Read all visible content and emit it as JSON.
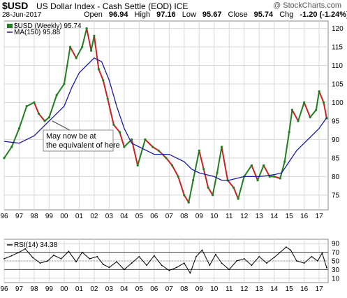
{
  "header": {
    "symbol": "$USD",
    "name": "US Dollar Index - Cash Settle (EOD) ICE",
    "site": "@ StockCharts.com",
    "date": "28-Jun-2017",
    "open_label": "Open",
    "open": "96.94",
    "high_label": "High",
    "high": "97.16",
    "low_label": "Low",
    "low": "95.67",
    "close_label": "Close",
    "close": "95.74",
    "chg_label": "Chg",
    "chg": "-1.20 (-1.24%)"
  },
  "colors": {
    "price": "#208020",
    "price_down": "#cc2020",
    "ma": "#1a1aa0",
    "rsi": "#000000",
    "grid": "#d8d8d8"
  },
  "chart_data": [
    {
      "type": "line",
      "legend": [
        {
          "label": "$USD (Weekly) 95.74",
          "icon": "price-swatch"
        },
        {
          "label": "MA(150) 95.88",
          "icon": "ma-swatch"
        }
      ],
      "annotation": "May now be at the equivalent of here",
      "y_ticks": [
        75,
        80,
        85,
        90,
        95,
        100,
        105,
        110,
        115,
        120
      ],
      "ylim": [
        71,
        122
      ],
      "xlim": [
        1996.0,
        2017.6
      ],
      "x_tick_labels": [
        "96",
        "97",
        "98",
        "99",
        "00",
        "01",
        "02",
        "03",
        "04",
        "05",
        "06",
        "07",
        "08",
        "09",
        "10",
        "11",
        "12",
        "13",
        "14",
        "15",
        "16",
        "17"
      ],
      "series": [
        {
          "name": "$USD (Weekly)",
          "x": [
            1996.0,
            1996.5,
            1997.0,
            1997.5,
            1998.0,
            1998.3,
            1998.7,
            1999.0,
            1999.5,
            2000.0,
            2000.4,
            2000.8,
            2001.2,
            2001.5,
            2001.8,
            2002.0,
            2002.3,
            2002.6,
            2002.9,
            2003.3,
            2003.7,
            2004.0,
            2004.5,
            2004.9,
            2005.4,
            2005.9,
            2006.3,
            2006.8,
            2007.2,
            2007.6,
            2008.0,
            2008.3,
            2008.6,
            2009.0,
            2009.3,
            2009.6,
            2009.9,
            2010.2,
            2010.5,
            2010.9,
            2011.3,
            2011.6,
            2012.0,
            2012.5,
            2012.9,
            2013.3,
            2013.7,
            2014.0,
            2014.4,
            2014.7,
            2015.0,
            2015.2,
            2015.6,
            2016.0,
            2016.4,
            2016.8,
            2017.0,
            2017.3,
            2017.5
          ],
          "y": [
            85,
            88,
            93,
            99,
            100,
            97,
            95,
            96,
            102,
            105,
            115,
            112,
            115,
            120,
            114,
            118,
            109,
            106,
            101,
            94,
            92,
            88,
            90,
            83,
            90,
            88,
            87,
            85,
            83,
            80,
            75,
            73,
            79,
            87,
            82,
            77,
            75,
            81,
            88,
            79,
            77,
            74,
            80,
            83,
            79,
            83,
            80,
            80,
            79.5,
            84,
            92,
            98,
            95,
            100,
            96,
            98,
            103,
            100,
            95.74
          ]
        },
        {
          "name": "MA(150)",
          "x": [
            1996.0,
            1997.0,
            1998.0,
            1999.0,
            2000.0,
            2000.5,
            2001.0,
            2001.5,
            2002.0,
            2002.5,
            2003.0,
            2003.5,
            2004.0,
            2004.5,
            2005.0,
            2005.5,
            2006.0,
            2006.5,
            2007.0,
            2007.5,
            2008.0,
            2008.5,
            2009.0,
            2009.5,
            2010.0,
            2010.5,
            2011.0,
            2011.5,
            2012.0,
            2012.5,
            2013.0,
            2013.5,
            2014.0,
            2014.5,
            2015.0,
            2015.5,
            2016.0,
            2016.5,
            2017.0,
            2017.5
          ],
          "y": [
            89.5,
            89,
            91,
            95,
            99,
            104,
            108,
            110,
            112,
            111,
            106,
            99,
            93,
            89,
            88,
            87,
            86,
            86,
            86,
            85,
            84,
            82,
            81,
            80.5,
            80,
            79,
            79,
            79.5,
            80,
            80,
            80,
            80.2,
            80.5,
            81,
            84,
            87,
            89,
            91,
            93,
            95.88
          ]
        }
      ]
    },
    {
      "type": "line",
      "legend": [
        {
          "label": "RSI(14) 34.38",
          "icon": "rsi-swatch"
        }
      ],
      "y_ticks": [
        10,
        30,
        50,
        70,
        90
      ],
      "ref_lines": [
        30,
        70
      ],
      "ylim": [
        0,
        100
      ],
      "xlim": [
        1996.0,
        2017.6
      ],
      "x_tick_labels": [
        "96",
        "97",
        "98",
        "99",
        "00",
        "01",
        "02",
        "03",
        "04",
        "05",
        "06",
        "07",
        "08",
        "09",
        "10",
        "11",
        "12",
        "13",
        "14",
        "15",
        "16",
        "17"
      ],
      "series": [
        {
          "name": "RSI(14)",
          "x": [
            1996.0,
            1996.5,
            1997.0,
            1997.4,
            1997.9,
            1998.4,
            1998.9,
            1999.3,
            1999.8,
            2000.3,
            2000.8,
            2001.2,
            2001.7,
            2002.2,
            2002.6,
            2003.0,
            2003.5,
            2004.0,
            2004.5,
            2005.0,
            2005.5,
            2006.0,
            2006.5,
            2007.0,
            2007.5,
            2008.0,
            2008.4,
            2008.8,
            2009.2,
            2009.7,
            2010.1,
            2010.5,
            2011.0,
            2011.5,
            2012.0,
            2012.5,
            2013.0,
            2013.5,
            2014.0,
            2014.4,
            2014.8,
            2015.1,
            2015.5,
            2016.0,
            2016.5,
            2016.9,
            2017.2,
            2017.5
          ],
          "y": [
            55,
            62,
            70,
            78,
            58,
            45,
            50,
            63,
            55,
            72,
            48,
            70,
            55,
            60,
            42,
            35,
            48,
            30,
            45,
            60,
            40,
            62,
            40,
            28,
            35,
            45,
            22,
            60,
            75,
            40,
            65,
            45,
            30,
            50,
            55,
            40,
            60,
            45,
            58,
            70,
            82,
            75,
            50,
            45,
            60,
            50,
            68,
            34.38
          ]
        }
      ]
    }
  ]
}
